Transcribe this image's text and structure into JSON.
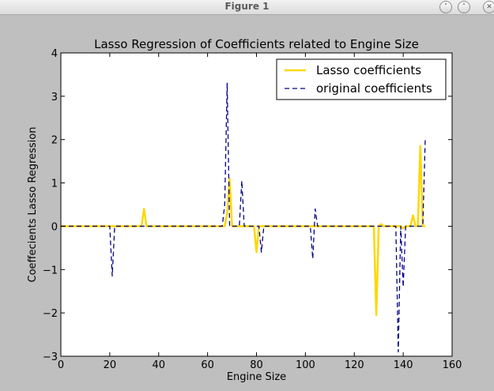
{
  "window": {
    "title": "Figure 1",
    "minimize_glyph": "˅",
    "maximize_glyph": "˄",
    "close_glyph": "✕"
  },
  "chart_data": {
    "type": "line",
    "title": "Lasso Regression of Coefficients related to Engine Size",
    "xlabel": "Engine Size",
    "ylabel": "Coeffecients Lasso Regression",
    "xlim": [
      0,
      160
    ],
    "ylim": [
      -3,
      4
    ],
    "xticks": [
      0,
      20,
      40,
      60,
      80,
      100,
      120,
      140,
      160
    ],
    "yticks": [
      -3,
      -2,
      -1,
      0,
      1,
      2,
      3,
      4
    ],
    "grid": false,
    "legend_position": "top-right",
    "series": [
      {
        "name": "Lasso coefficients",
        "style": "solid",
        "color": "#ffd700",
        "points": [
          [
            0,
            0
          ],
          [
            33,
            0
          ],
          [
            34,
            0.4
          ],
          [
            35,
            0
          ],
          [
            67,
            0
          ],
          [
            68,
            0.3
          ],
          [
            69,
            1.1
          ],
          [
            70,
            0
          ],
          [
            79,
            0
          ],
          [
            80,
            -0.6
          ],
          [
            81,
            0
          ],
          [
            128,
            0
          ],
          [
            129,
            -2.05
          ],
          [
            130,
            0
          ],
          [
            131,
            0.05
          ],
          [
            132,
            0
          ],
          [
            139,
            0
          ],
          [
            140,
            -0.05
          ],
          [
            141,
            0
          ],
          [
            143,
            0
          ],
          [
            144,
            0.25
          ],
          [
            145,
            0
          ],
          [
            146,
            0
          ],
          [
            147,
            1.85
          ],
          [
            148,
            0
          ],
          [
            149,
            0
          ]
        ]
      },
      {
        "name": "original coefficients",
        "style": "dashed",
        "color": "#00008b",
        "points": [
          [
            0,
            0
          ],
          [
            20,
            0
          ],
          [
            21,
            -1.15
          ],
          [
            22,
            0
          ],
          [
            66,
            0
          ],
          [
            67,
            0.5
          ],
          [
            68,
            3.3
          ],
          [
            69,
            0
          ],
          [
            73,
            0
          ],
          [
            74,
            1.05
          ],
          [
            75,
            0
          ],
          [
            81,
            0
          ],
          [
            82,
            -0.6
          ],
          [
            83,
            0
          ],
          [
            102,
            0
          ],
          [
            103,
            -0.75
          ],
          [
            104,
            0.4
          ],
          [
            105,
            0
          ],
          [
            137,
            0
          ],
          [
            138,
            -2.9
          ],
          [
            139,
            0
          ],
          [
            140,
            -1.4
          ],
          [
            141,
            0
          ],
          [
            148,
            0
          ],
          [
            149,
            2.0
          ]
        ]
      }
    ]
  }
}
